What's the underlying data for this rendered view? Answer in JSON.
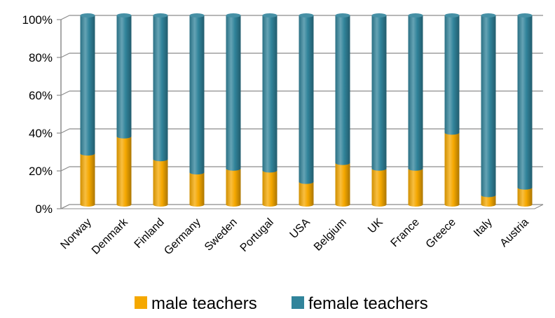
{
  "chart_data": {
    "type": "bar",
    "stacked": true,
    "percent_stacked": true,
    "three_d": true,
    "categories": [
      "Norway",
      "Denmark",
      "Finland",
      "Germany",
      "Sweden",
      "Portugal",
      "USA",
      "Belgium",
      "UK",
      "France",
      "Greece",
      "Italy",
      "Austria"
    ],
    "series": [
      {
        "name": "male teachers",
        "color": "#F5A800",
        "values": [
          27,
          36,
          24,
          17,
          19,
          18,
          12,
          22,
          19,
          19,
          38,
          5,
          9
        ]
      },
      {
        "name": "female teachers",
        "color": "#31849B",
        "values": [
          73,
          64,
          76,
          83,
          81,
          82,
          88,
          78,
          81,
          81,
          62,
          95,
          91
        ]
      }
    ],
    "y_ticks": [
      "0%",
      "20%",
      "40%",
      "60%",
      "80%",
      "100%"
    ],
    "ylim": [
      0,
      100
    ],
    "grid": true,
    "legend_position": "bottom"
  }
}
